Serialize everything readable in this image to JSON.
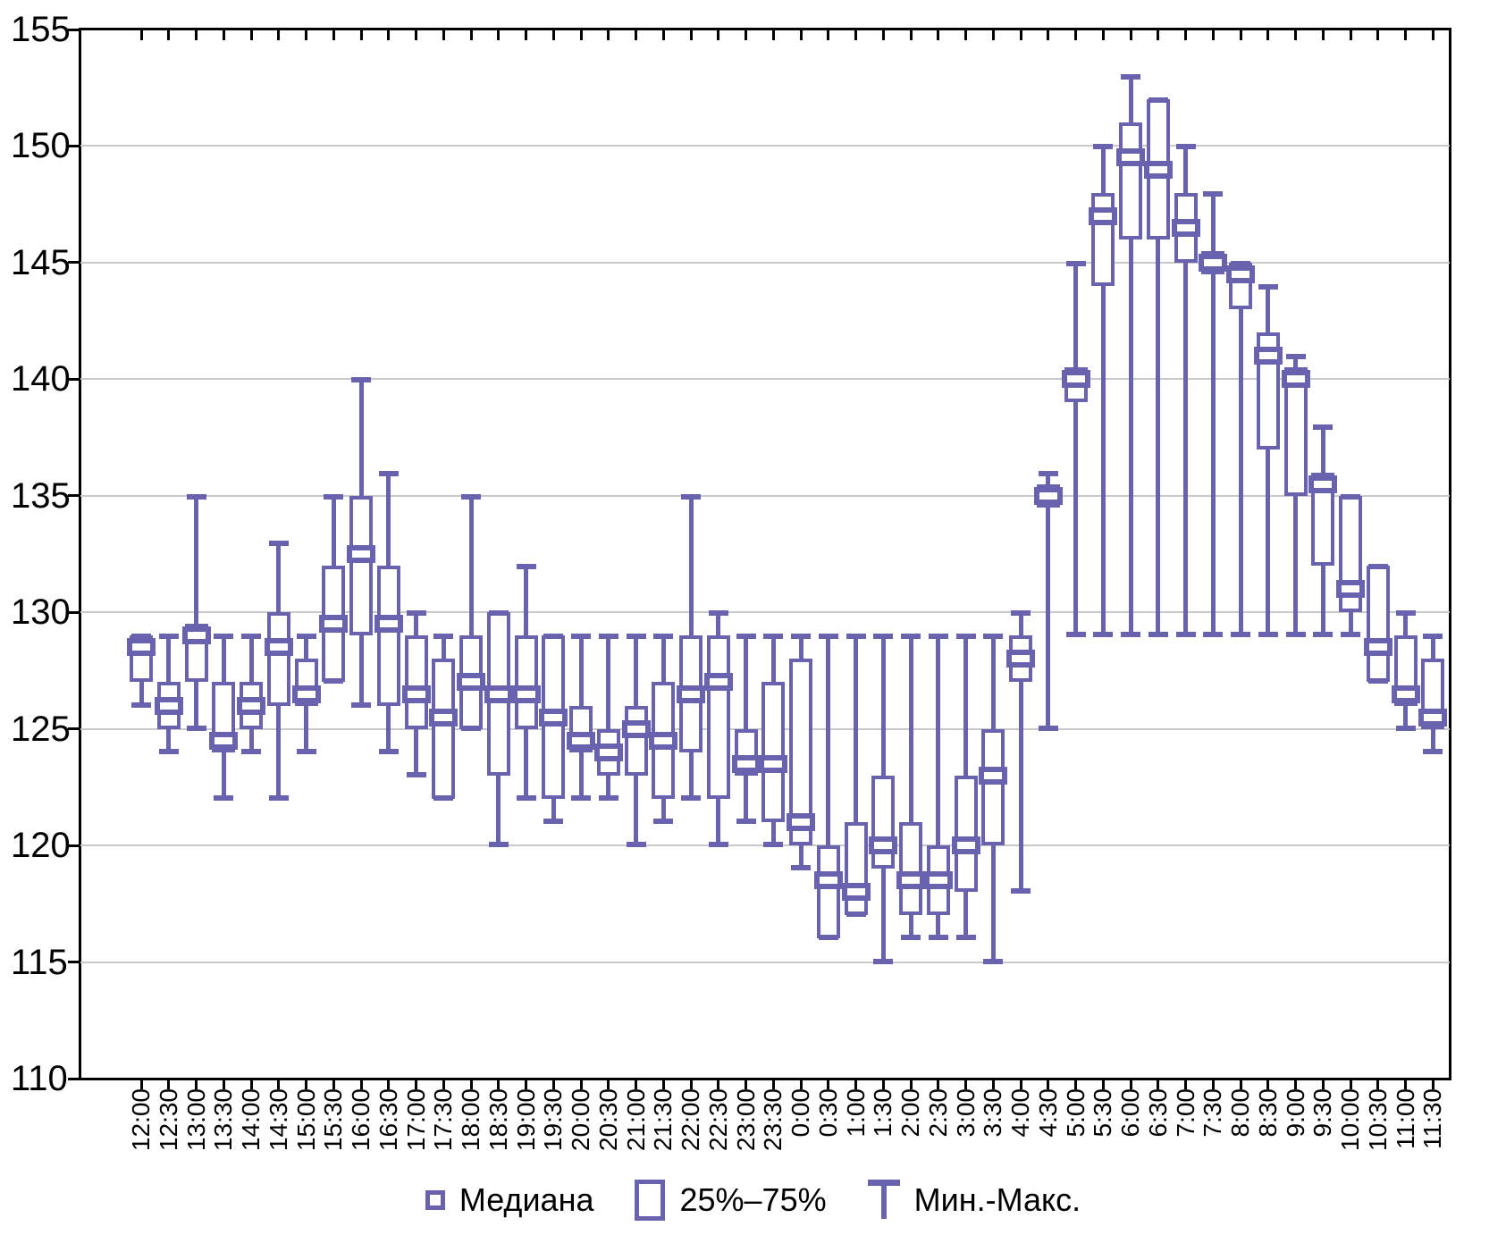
{
  "chart_data": {
    "type": "box",
    "title": "",
    "xlabel": "",
    "ylabel": "",
    "ylim": [
      110,
      155
    ],
    "ystep": 5,
    "y_tick_labels": [
      "155",
      "150",
      "145",
      "140",
      "135",
      "130",
      "125",
      "120",
      "115",
      "110"
    ],
    "grid": "horizontal",
    "legend_position": "bottom",
    "box_value_order": [
      "min",
      "q1",
      "median",
      "q3",
      "max"
    ],
    "categories": [
      "12:00",
      "12:30",
      "13:00",
      "13:30",
      "14:00",
      "14:30",
      "15:00",
      "15:30",
      "16:00",
      "16:30",
      "17:00",
      "17:30",
      "18:00",
      "18:30",
      "19:00",
      "19:30",
      "20:00",
      "20:30",
      "21:00",
      "21:30",
      "22:00",
      "22:30",
      "23:00",
      "23:30",
      "0:00",
      "0:30",
      "1:00",
      "1:30",
      "2:00",
      "2:30",
      "3:00",
      "3:30",
      "4:00",
      "4:30",
      "5:00",
      "5:30",
      "6:00",
      "6:30",
      "7:00",
      "7:30",
      "8:00",
      "8:30",
      "9:00",
      "9:30",
      "10:00",
      "10:30",
      "11:00",
      "11:30"
    ],
    "boxes": [
      [
        126,
        127,
        128.5,
        129,
        129
      ],
      [
        124,
        125,
        126,
        127,
        129
      ],
      [
        125,
        127,
        129,
        129.5,
        135
      ],
      [
        122,
        124,
        124.5,
        127,
        129
      ],
      [
        124,
        125,
        126,
        127,
        129
      ],
      [
        122,
        126,
        128.5,
        130,
        133
      ],
      [
        124,
        126,
        126.5,
        128,
        129
      ],
      [
        127,
        127,
        129.5,
        132,
        135
      ],
      [
        126,
        129,
        132.5,
        135,
        140
      ],
      [
        124,
        126,
        129.5,
        132,
        136
      ],
      [
        123,
        125,
        126.5,
        129,
        130
      ],
      [
        122,
        122,
        125.5,
        128,
        129
      ],
      [
        125,
        125,
        127,
        129,
        135
      ],
      [
        120,
        123,
        126.5,
        130,
        130
      ],
      [
        122,
        125,
        126.5,
        129,
        132
      ],
      [
        121,
        122,
        125.5,
        129,
        129
      ],
      [
        122,
        124,
        124.5,
        126,
        129
      ],
      [
        122,
        123,
        124,
        125,
        129
      ],
      [
        120,
        123,
        125,
        126,
        129
      ],
      [
        121,
        122,
        124.5,
        127,
        129
      ],
      [
        122,
        124,
        126.5,
        129,
        135
      ],
      [
        120,
        122,
        127,
        129,
        130
      ],
      [
        121,
        123,
        123.5,
        125,
        129
      ],
      [
        120,
        121,
        123.5,
        127,
        129
      ],
      [
        119,
        120,
        121,
        128,
        129
      ],
      [
        116,
        116,
        118.5,
        120,
        129
      ],
      [
        117,
        117,
        118,
        121,
        129
      ],
      [
        115,
        119,
        120,
        123,
        129
      ],
      [
        116,
        117,
        118.5,
        121,
        129
      ],
      [
        116,
        117,
        118.5,
        120,
        129
      ],
      [
        116,
        118,
        120,
        123,
        129
      ],
      [
        115,
        120,
        123,
        125,
        129
      ],
      [
        118,
        127,
        128,
        129,
        130
      ],
      [
        125,
        134.5,
        135,
        135.5,
        136
      ],
      [
        129,
        139,
        140,
        140.5,
        145
      ],
      [
        129,
        144,
        147,
        148,
        150
      ],
      [
        129,
        146,
        149.5,
        151,
        153
      ],
      [
        129,
        146,
        149,
        152,
        152
      ],
      [
        129,
        145,
        146.5,
        148,
        150
      ],
      [
        129,
        144.5,
        145,
        145.5,
        148
      ],
      [
        129,
        143,
        144.5,
        145,
        145
      ],
      [
        129,
        137,
        141,
        142,
        144
      ],
      [
        129,
        135,
        140,
        140.5,
        141
      ],
      [
        129,
        132,
        135.5,
        136,
        138
      ],
      [
        129,
        130,
        131,
        135,
        135
      ],
      [
        127,
        127,
        128.5,
        132,
        132
      ],
      [
        125,
        126,
        126.5,
        129,
        130
      ],
      [
        124,
        125,
        125.5,
        128,
        129
      ]
    ],
    "legend": {
      "median": "Медиана",
      "iqr": "25%–75%",
      "minmax": "Мин.-Макс."
    },
    "colors": {
      "series": "#6962AE",
      "grid": "#c9c9c9",
      "axis": "#000000",
      "background": "#ffffff"
    }
  }
}
